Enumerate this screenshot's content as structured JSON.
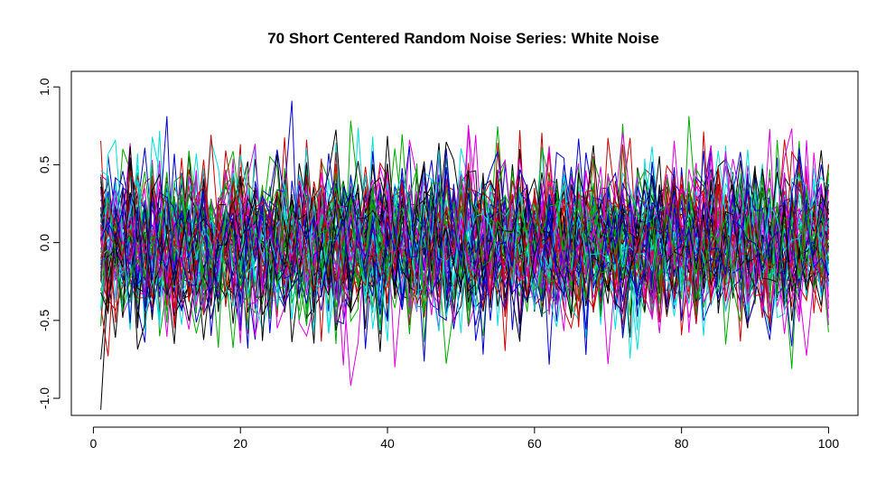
{
  "chart_data": {
    "type": "line",
    "title": "70 Short Centered Random Noise Series: White Noise",
    "xlabel": "",
    "ylabel": "",
    "xlim": [
      -3,
      104
    ],
    "ylim": [
      -1.11,
      1.1
    ],
    "x_ticks": [
      0,
      20,
      40,
      60,
      80,
      100
    ],
    "x_tick_labels": [
      "0",
      "20",
      "40",
      "60",
      "80",
      "100"
    ],
    "y_ticks": [
      -1.0,
      -0.5,
      0.0,
      0.5,
      1.0
    ],
    "y_tick_labels": [
      "-1.0",
      "-0.5",
      "0.0",
      "0.5",
      "1.0"
    ],
    "grid": false,
    "legend": "none",
    "series_count": 70,
    "points_per_series": 100,
    "x": [
      1,
      100
    ],
    "noise_sd": 0.25,
    "y_range_observed": [
      -1.02,
      1.04
    ],
    "palette": [
      "#000000",
      "#DF536B",
      "#61D04F",
      "#2297E6",
      "#28E2E5",
      "#CD0BBC",
      "#F5C710",
      "#9E9E9E"
    ],
    "colors_used": [
      "#000000",
      "#CC0000",
      "#00AA00",
      "#0000CC",
      "#00DDDD",
      "#DD00DD"
    ]
  }
}
